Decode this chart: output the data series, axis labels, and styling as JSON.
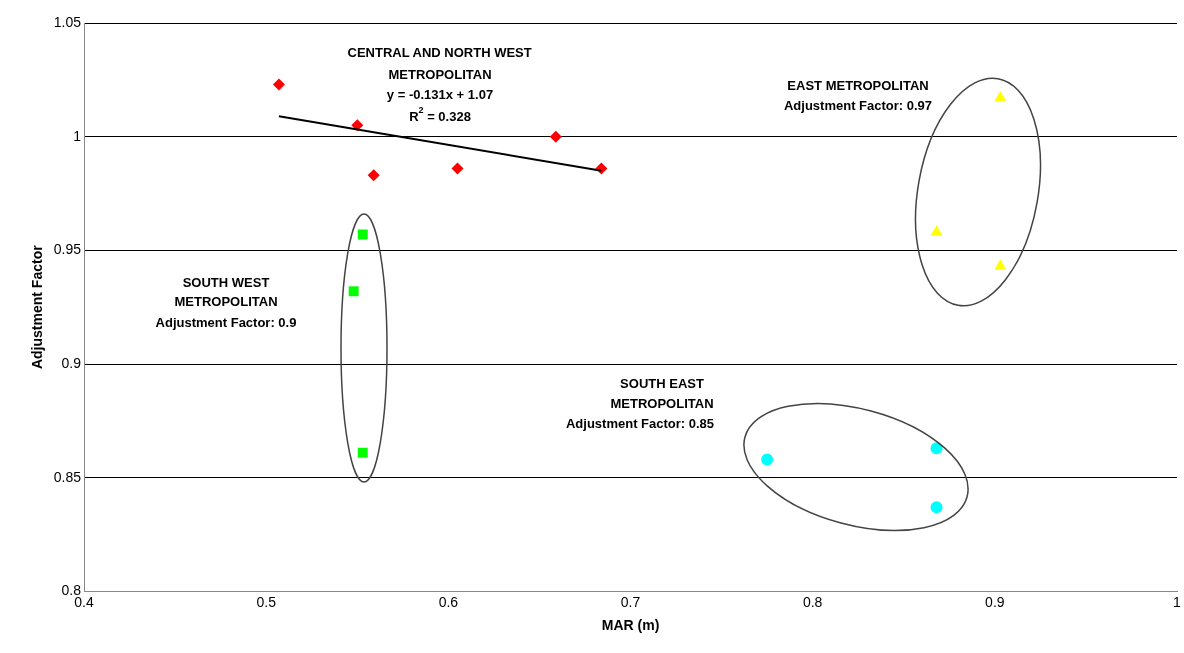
{
  "chart_data": {
    "type": "scatter",
    "xlabel": "MAR (m)",
    "ylabel": "Adjustment Factor",
    "xlim": [
      0.4,
      1
    ],
    "xticks": [
      0.4,
      0.5,
      0.6,
      0.7,
      0.8,
      0.9,
      1
    ],
    "ylim": [
      0.8,
      1.05
    ],
    "yticks": [
      0.8,
      0.85,
      0.9,
      0.95,
      1,
      1.05
    ],
    "grid": "y",
    "legend": false,
    "series": [
      {
        "color": "#ff0000",
        "marker": "diamond",
        "x": [
          0.507,
          0.55,
          0.559,
          0.605,
          0.659,
          0.684
        ],
        "values": [
          1.023,
          1.005,
          0.983,
          0.986,
          1.0,
          0.986
        ]
      },
      {
        "color": "#00ff00",
        "marker": "square",
        "x": [
          0.553,
          0.548,
          0.553
        ],
        "values": [
          0.957,
          0.932,
          0.861
        ]
      },
      {
        "color": "#ffff00",
        "marker": "triangle",
        "x": [
          0.903,
          0.868,
          0.903
        ],
        "values": [
          1.017,
          0.958,
          0.943
        ]
      },
      {
        "color": "#00ffff",
        "marker": "circle",
        "x": [
          0.775,
          0.868,
          0.868
        ],
        "values": [
          0.858,
          0.863,
          0.837
        ]
      },
      {
        "type": "line",
        "color": "#000000",
        "marker": "none",
        "x": [
          0.507,
          0.684
        ],
        "values": [
          1.009,
          0.985
        ]
      }
    ],
    "annotations": [
      "CENTRAL AND NORTH WEST",
      "METROPOLITAN",
      "y = -0.131x + 1.07",
      "R$^{2}$ = 0.328",
      "EAST METROPOLITAN",
      "Adjustment Factor: 0.97",
      "SOUTH WEST",
      "METROPOLITAN",
      "Adjustment Factor: 0.9",
      "SOUTH EAST",
      "METROPOLITAN",
      "Adjustment Factor: 0.85"
    ]
  }
}
